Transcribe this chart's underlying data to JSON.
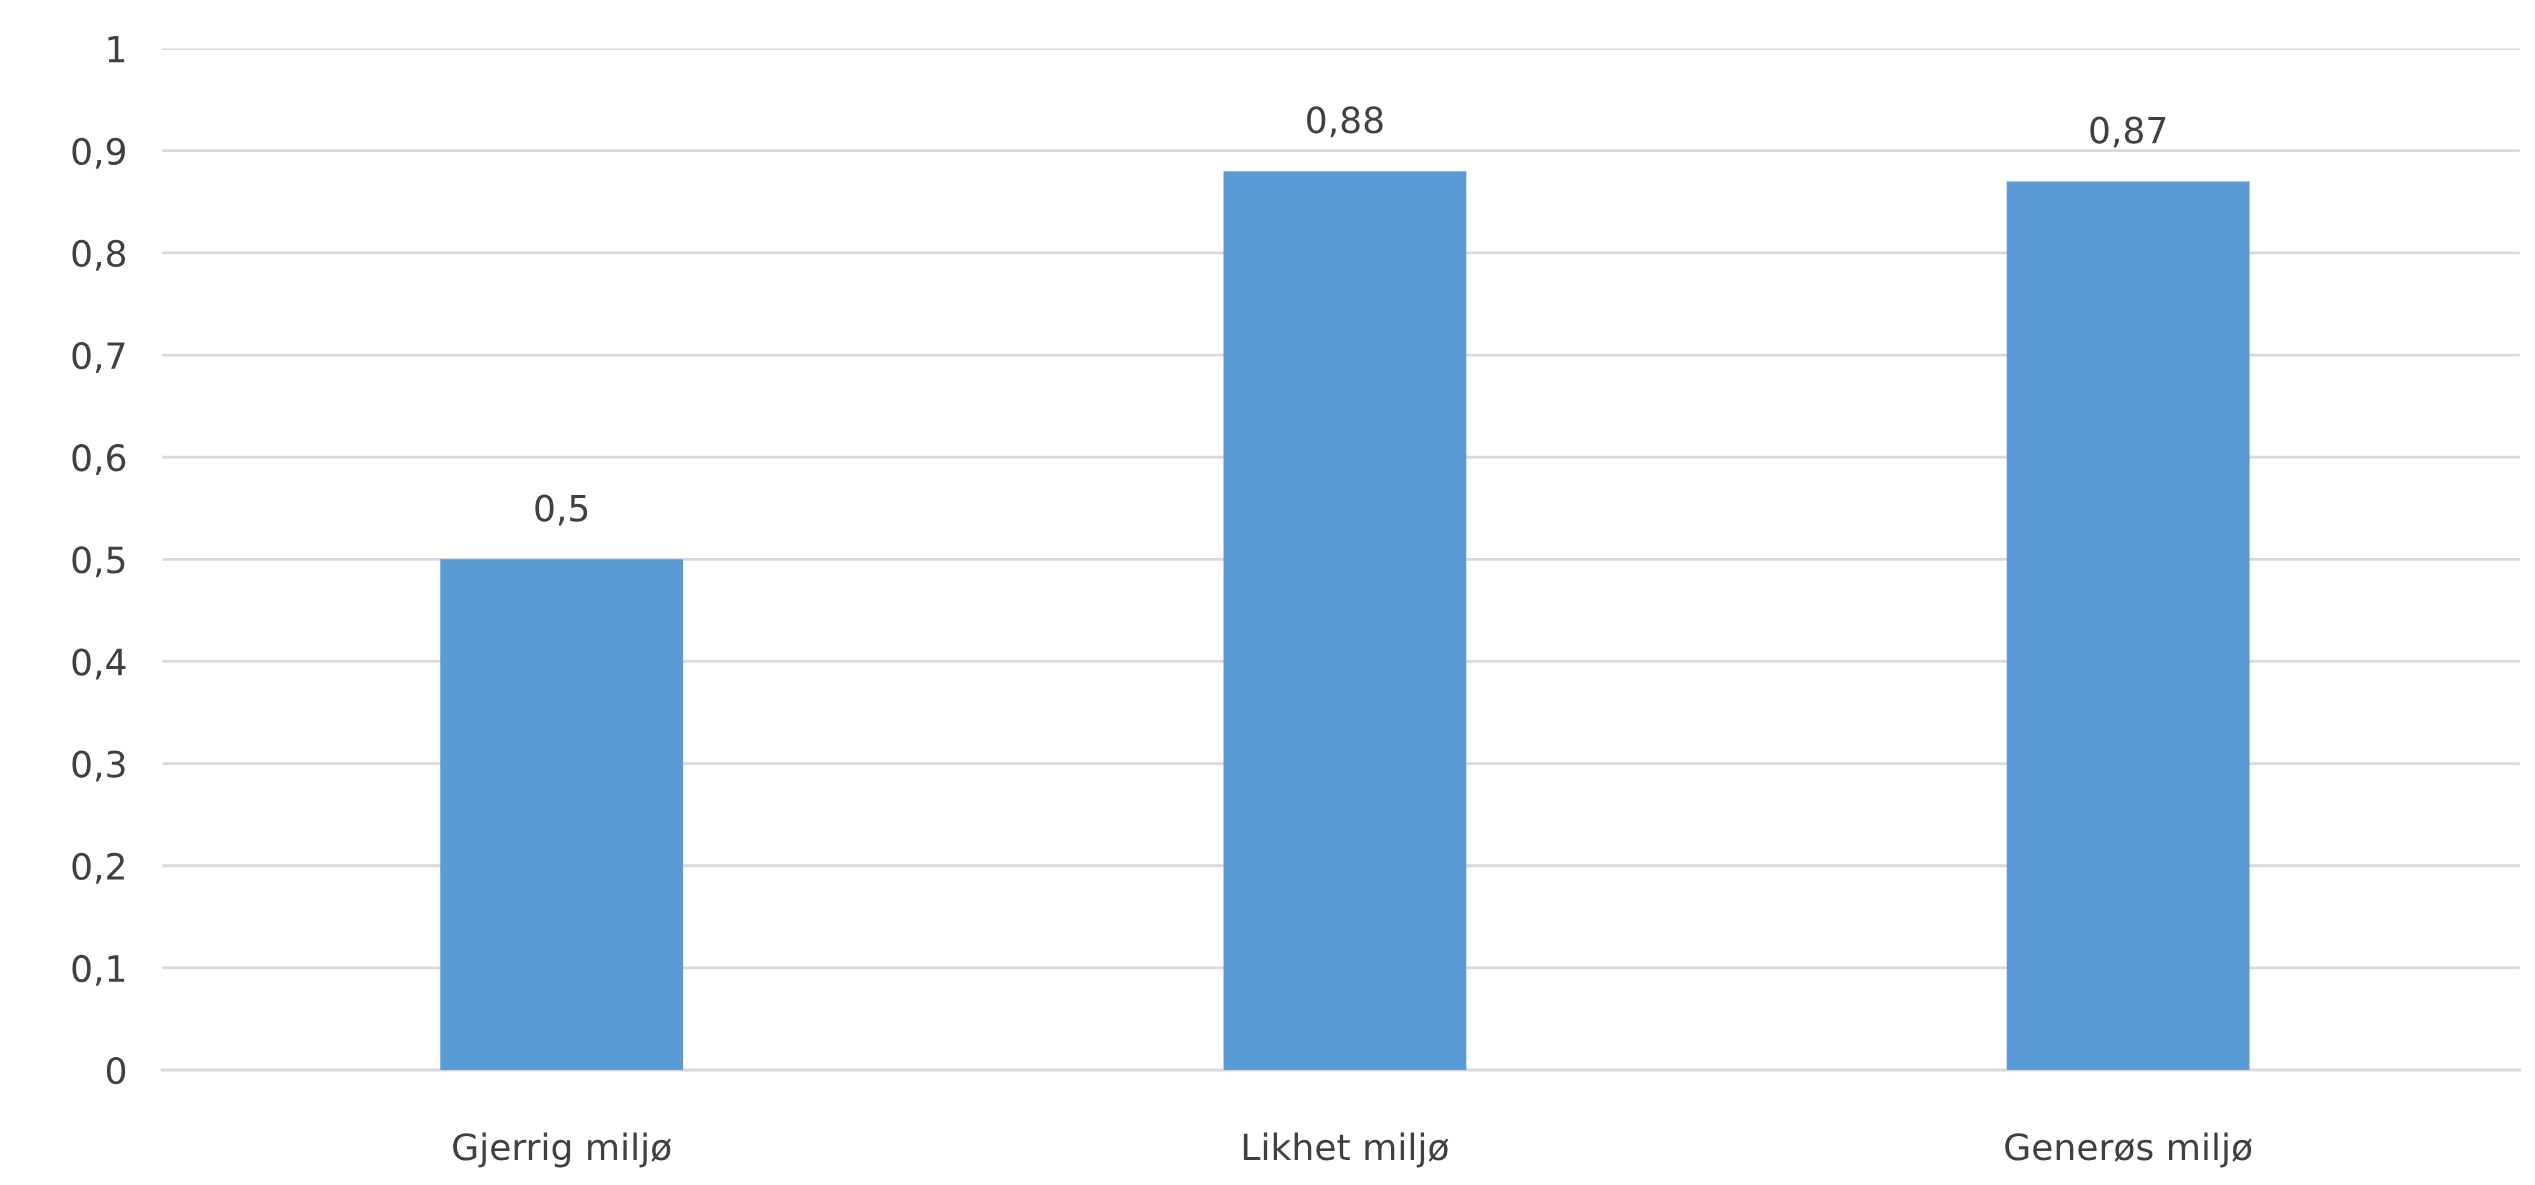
{
  "chart_data": {
    "type": "bar",
    "categories": [
      "Gjerrig miljø",
      "Likhet miljø",
      "Generøs miljø"
    ],
    "values": [
      0.5,
      0.88,
      0.87
    ],
    "value_labels": [
      "0,5",
      "0,88",
      "0,87"
    ],
    "color": "#5b9bd5",
    "ylim": [
      0,
      1
    ],
    "yticks": [
      0,
      {
        "value": 0.1,
        "label": "0,1"
      },
      {
        "value": 0.2,
        "label": "0,2"
      },
      {
        "value": 0.3,
        "label": "0,3"
      },
      {
        "value": 0.4,
        "label": "0,4"
      },
      {
        "value": 0.5,
        "label": "0,5"
      },
      {
        "value": 0.6,
        "label": "0,6"
      },
      {
        "value": 0.7,
        "label": "0,7"
      },
      {
        "value": 0.8,
        "label": "0,8"
      },
      {
        "value": 0.9,
        "label": "0,9"
      },
      1
    ],
    "grid": "y",
    "legend": false
  }
}
